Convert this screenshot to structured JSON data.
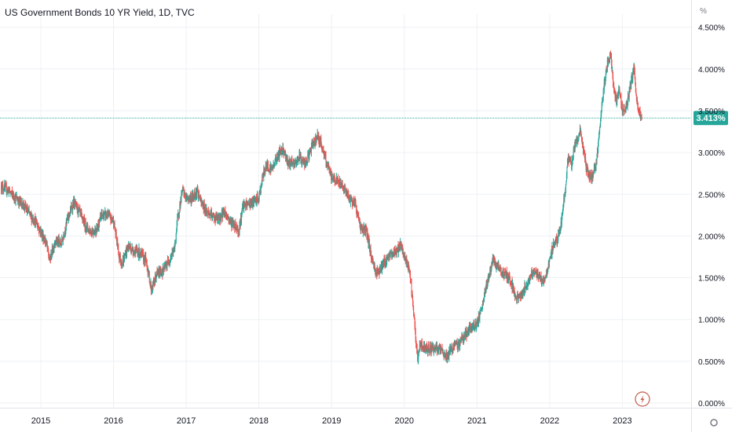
{
  "chart_data": {
    "type": "candlestick",
    "title": "US Government Bonds 10 YR Yield, 1D, TVC",
    "y_unit_label": "%",
    "x_ticks": [
      "2015",
      "2016",
      "2017",
      "2018",
      "2019",
      "2020",
      "2021",
      "2022",
      "2023"
    ],
    "y_ticks": [
      "4.500%",
      "4.000%",
      "3.500%",
      "3.000%",
      "2.500%",
      "2.000%",
      "1.500%",
      "1.000%",
      "0.500%",
      "0.000%"
    ],
    "ylim": [
      0.0,
      4.5
    ],
    "xlim": [
      2014.45,
      2023.95
    ],
    "last_value_label": "3.413%",
    "last_value": 3.413,
    "grid": true,
    "colors": {
      "up": "#26a69a",
      "down": "#ef5350",
      "last_value": "#26a69a",
      "grid": "#eef0f3",
      "axis_text": "#131722"
    },
    "series": [
      {
        "values": [
          [
            2014.45,
            2.6
          ],
          [
            2014.55,
            2.55
          ],
          [
            2014.62,
            2.48
          ],
          [
            2014.7,
            2.42
          ],
          [
            2014.78,
            2.35
          ],
          [
            2014.85,
            2.25
          ],
          [
            2014.92,
            2.18
          ],
          [
            2015.0,
            2.05
          ],
          [
            2015.08,
            1.9
          ],
          [
            2015.12,
            1.7
          ],
          [
            2015.2,
            1.95
          ],
          [
            2015.28,
            1.9
          ],
          [
            2015.36,
            2.18
          ],
          [
            2015.45,
            2.4
          ],
          [
            2015.52,
            2.3
          ],
          [
            2015.6,
            2.15
          ],
          [
            2015.68,
            2.05
          ],
          [
            2015.76,
            2.07
          ],
          [
            2015.84,
            2.25
          ],
          [
            2015.92,
            2.25
          ],
          [
            2016.0,
            2.18
          ],
          [
            2016.08,
            1.75
          ],
          [
            2016.12,
            1.67
          ],
          [
            2016.2,
            1.88
          ],
          [
            2016.28,
            1.82
          ],
          [
            2016.36,
            1.8
          ],
          [
            2016.45,
            1.7
          ],
          [
            2016.52,
            1.36
          ],
          [
            2016.6,
            1.55
          ],
          [
            2016.68,
            1.58
          ],
          [
            2016.76,
            1.7
          ],
          [
            2016.84,
            1.85
          ],
          [
            2016.88,
            2.2
          ],
          [
            2016.95,
            2.55
          ],
          [
            2017.0,
            2.45
          ],
          [
            2017.08,
            2.45
          ],
          [
            2017.15,
            2.55
          ],
          [
            2017.2,
            2.4
          ],
          [
            2017.28,
            2.3
          ],
          [
            2017.36,
            2.23
          ],
          [
            2017.45,
            2.2
          ],
          [
            2017.52,
            2.3
          ],
          [
            2017.6,
            2.18
          ],
          [
            2017.68,
            2.12
          ],
          [
            2017.72,
            2.05
          ],
          [
            2017.78,
            2.35
          ],
          [
            2017.84,
            2.38
          ],
          [
            2017.92,
            2.4
          ],
          [
            2018.0,
            2.45
          ],
          [
            2018.05,
            2.7
          ],
          [
            2018.1,
            2.85
          ],
          [
            2018.18,
            2.8
          ],
          [
            2018.25,
            2.95
          ],
          [
            2018.33,
            3.05
          ],
          [
            2018.4,
            2.88
          ],
          [
            2018.48,
            2.85
          ],
          [
            2018.56,
            2.95
          ],
          [
            2018.64,
            2.85
          ],
          [
            2018.72,
            3.05
          ],
          [
            2018.8,
            3.2
          ],
          [
            2018.86,
            3.1
          ],
          [
            2018.92,
            2.9
          ],
          [
            2019.0,
            2.7
          ],
          [
            2019.08,
            2.65
          ],
          [
            2019.16,
            2.6
          ],
          [
            2019.24,
            2.45
          ],
          [
            2019.32,
            2.4
          ],
          [
            2019.4,
            2.1
          ],
          [
            2019.48,
            2.05
          ],
          [
            2019.56,
            1.7
          ],
          [
            2019.62,
            1.55
          ],
          [
            2019.7,
            1.65
          ],
          [
            2019.78,
            1.75
          ],
          [
            2019.86,
            1.8
          ],
          [
            2019.95,
            1.88
          ],
          [
            2020.02,
            1.7
          ],
          [
            2020.08,
            1.55
          ],
          [
            2020.12,
            1.15
          ],
          [
            2020.18,
            0.54
          ],
          [
            2020.22,
            0.7
          ],
          [
            2020.28,
            0.65
          ],
          [
            2020.36,
            0.66
          ],
          [
            2020.44,
            0.65
          ],
          [
            2020.52,
            0.62
          ],
          [
            2020.58,
            0.55
          ],
          [
            2020.66,
            0.66
          ],
          [
            2020.74,
            0.7
          ],
          [
            2020.82,
            0.8
          ],
          [
            2020.9,
            0.88
          ],
          [
            2021.0,
            0.95
          ],
          [
            2021.06,
            1.1
          ],
          [
            2021.14,
            1.45
          ],
          [
            2021.22,
            1.7
          ],
          [
            2021.3,
            1.6
          ],
          [
            2021.38,
            1.55
          ],
          [
            2021.46,
            1.48
          ],
          [
            2021.54,
            1.25
          ],
          [
            2021.62,
            1.3
          ],
          [
            2021.7,
            1.45
          ],
          [
            2021.78,
            1.6
          ],
          [
            2021.84,
            1.52
          ],
          [
            2021.92,
            1.45
          ],
          [
            2022.0,
            1.7
          ],
          [
            2022.05,
            1.9
          ],
          [
            2022.1,
            1.95
          ],
          [
            2022.15,
            2.1
          ],
          [
            2022.2,
            2.45
          ],
          [
            2022.25,
            2.9
          ],
          [
            2022.3,
            2.85
          ],
          [
            2022.35,
            3.1
          ],
          [
            2022.42,
            3.25
          ],
          [
            2022.48,
            2.95
          ],
          [
            2022.52,
            2.75
          ],
          [
            2022.58,
            2.7
          ],
          [
            2022.64,
            2.85
          ],
          [
            2022.68,
            3.2
          ],
          [
            2022.72,
            3.6
          ],
          [
            2022.76,
            3.85
          ],
          [
            2022.8,
            4.1
          ],
          [
            2022.84,
            4.15
          ],
          [
            2022.88,
            3.8
          ],
          [
            2022.92,
            3.6
          ],
          [
            2022.96,
            3.75
          ],
          [
            2023.0,
            3.5
          ],
          [
            2023.06,
            3.55
          ],
          [
            2023.12,
            3.85
          ],
          [
            2023.16,
            4.0
          ],
          [
            2023.2,
            3.6
          ],
          [
            2023.24,
            3.45
          ],
          [
            2023.27,
            3.413
          ]
        ]
      }
    ]
  }
}
